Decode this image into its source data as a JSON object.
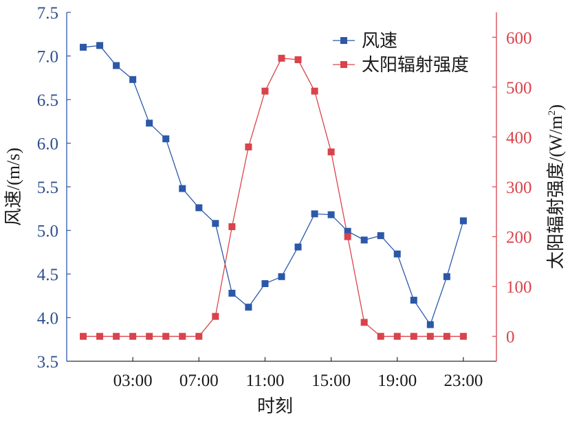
{
  "chart_data": {
    "type": "line",
    "xlabel": "时刻",
    "ylabel_left": "风速/(m/s)",
    "ylabel_right_main": "太阳辐射强度/(W/m",
    "ylabel_right_sup": "2",
    "ylabel_right_close": ")",
    "x_tick_labels": [
      "03:00",
      "07:00",
      "11:00",
      "15:00",
      "19:00",
      "23:00"
    ],
    "x_tick_values": [
      3,
      7,
      11,
      15,
      19,
      23
    ],
    "xlim": [
      -1,
      25
    ],
    "ylim_left": [
      3.5,
      7.5
    ],
    "ylim_right": [
      -50,
      650
    ],
    "yticks_left": [
      "3.5",
      "4.0",
      "4.5",
      "5.0",
      "5.5",
      "6.0",
      "6.5",
      "7.0",
      "7.5"
    ],
    "yticks_right": [
      "0",
      "100",
      "200",
      "300",
      "400",
      "500",
      "600"
    ],
    "x": [
      0,
      1,
      2,
      3,
      4,
      5,
      6,
      7,
      8,
      9,
      10,
      11,
      12,
      13,
      14,
      15,
      16,
      17,
      18,
      19,
      20,
      21,
      22,
      23
    ],
    "series": [
      {
        "name": "风速",
        "axis": "left",
        "color": "#2b58a8",
        "values": [
          7.1,
          7.12,
          6.89,
          6.73,
          6.23,
          6.05,
          5.48,
          5.26,
          5.08,
          4.28,
          4.12,
          4.39,
          4.47,
          4.81,
          5.19,
          5.18,
          4.99,
          4.89,
          4.94,
          4.73,
          4.2,
          3.92,
          4.47,
          5.11
        ]
      },
      {
        "name": "太阳辐射强度",
        "axis": "right",
        "color": "#d9434b",
        "values": [
          0,
          0,
          0,
          0,
          0,
          0,
          0,
          0,
          40,
          220,
          380,
          492,
          558,
          555,
          492,
          370,
          200,
          28,
          0,
          0,
          0,
          0,
          0,
          0
        ]
      }
    ],
    "legend_position": "top-right",
    "grid": false
  }
}
